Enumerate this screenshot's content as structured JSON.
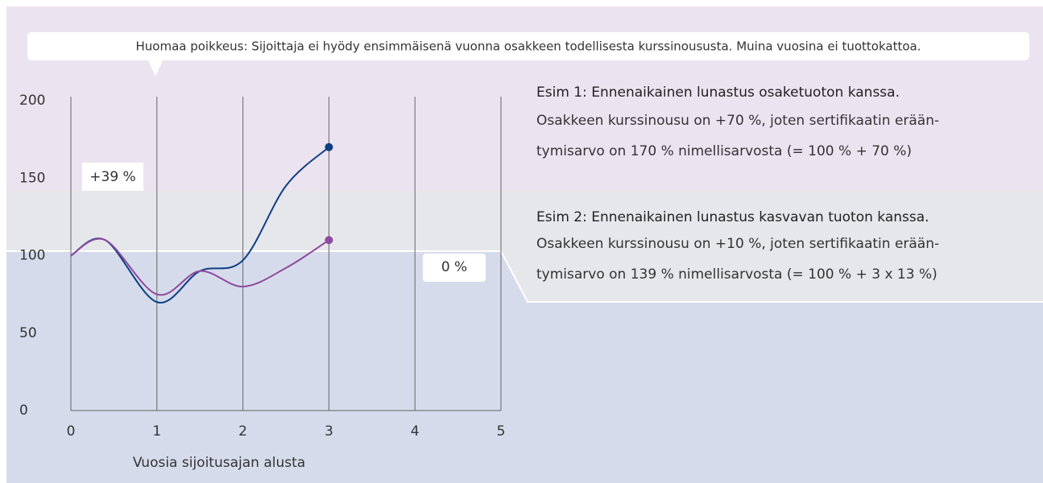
{
  "chart_data": {
    "type": "line",
    "callout": "Huomaa poikkeus: Sijoittaja ei hyödy ensimmäisenä vuonna osakkeen todellisesta kurssinoususta. Muina vuosina ei tuottokattoa.",
    "annotations": [
      "+39 %",
      "0 %"
    ],
    "notes": [
      {
        "title": "Esim 1: Ennenaikainen lunastus osaketuoton kanssa.",
        "lines": [
          "Osakkeen kurssinousu on +70 %, joten sertifikaatin erään-",
          "tymisarvo on 170 % nimellisarvosta (= 100 % + 70 %)"
        ]
      },
      {
        "title": "Esim 2: Ennenaikainen lunastus kasvavan tuoton kanssa.",
        "lines": [
          "Osakkeen kurssinousu on +10 %, joten sertifikaatin erään-",
          "tymisarvo on 139 % nimellisarvosta (= 100 % + 3 x 13 %)"
        ]
      }
    ],
    "x_label": "Vuosia sijoitusajan alusta",
    "x": [
      0,
      0.4,
      1,
      1.5,
      2,
      2.5,
      3
    ],
    "series": [
      {
        "color": "#0d3f85",
        "values": [
          100,
          110,
          70,
          90,
          97,
          145,
          170
        ]
      },
      {
        "color": "#8e4a9e",
        "values": [
          100,
          110,
          75,
          90,
          80,
          92,
          110
        ]
      }
    ],
    "xlim": [
      0,
      5
    ],
    "xticks": [
      0,
      1,
      2,
      3,
      4,
      5
    ],
    "ylim": [
      0,
      200
    ],
    "yticks": [
      0,
      50,
      100,
      150,
      200
    ],
    "grid": true
  }
}
